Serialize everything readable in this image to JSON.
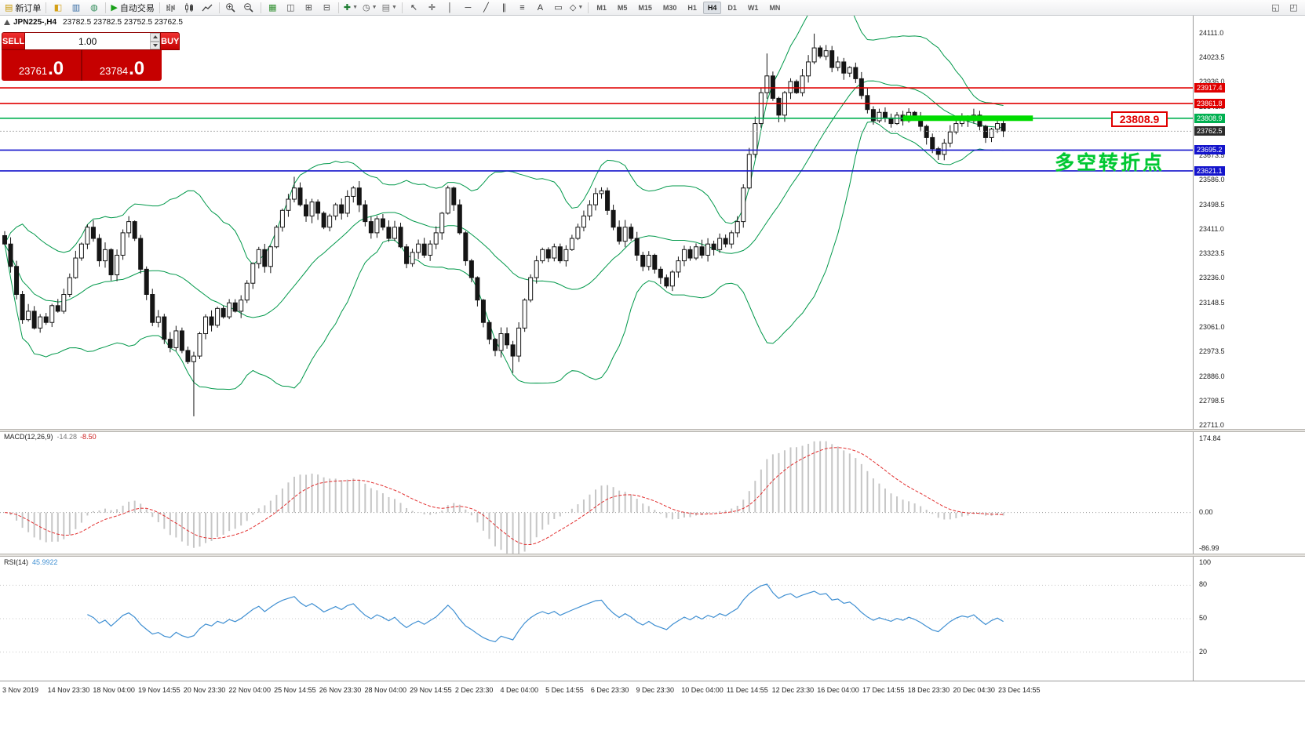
{
  "toolbar": {
    "new_order_label": "新订单",
    "auto_trading_label": "自动交易",
    "timeframes": [
      "M1",
      "M5",
      "M15",
      "M30",
      "H1",
      "H4",
      "D1",
      "W1",
      "MN"
    ],
    "active_timeframe": "H4",
    "icon_buttons": [
      {
        "name": "market-watch-button",
        "icon": "market-watch-icon"
      },
      {
        "name": "data-window-button",
        "icon": "data-window-icon"
      },
      {
        "name": "navigator-button",
        "icon": "navigator-icon"
      }
    ],
    "chart_type_buttons": [
      {
        "name": "bar-chart-button",
        "icon": "bars-icon"
      },
      {
        "name": "candlestick-chart-button",
        "icon": "candles-icon"
      },
      {
        "name": "line-chart-button",
        "icon": "line-chart-icon"
      }
    ],
    "zoom_buttons": [
      {
        "name": "zoom-in-button",
        "icon": "zoom-in-icon"
      },
      {
        "name": "zoom-out-button",
        "icon": "zoom-out-icon"
      }
    ],
    "window_buttons": [
      {
        "name": "new-chart-button",
        "icon": "new-chart-icon"
      },
      {
        "name": "profiles-button",
        "icon": "profiles-icon"
      },
      {
        "name": "tile-windows-button",
        "icon": "tile-windows-icon"
      },
      {
        "name": "cascade-windows-button",
        "icon": "cascade-windows-icon"
      }
    ],
    "dropdown_buttons": [
      {
        "name": "indicators-dropdown",
        "icon": "indicators-icon"
      },
      {
        "name": "periods-dropdown",
        "icon": "periods-icon"
      },
      {
        "name": "templates-dropdown",
        "icon": "templates-icon"
      }
    ],
    "drawing_buttons": [
      {
        "name": "cursor-button",
        "icon": "cursor-icon"
      },
      {
        "name": "crosshair-button",
        "icon": "crosshair-icon"
      },
      {
        "name": "vertical-line-button",
        "icon": "vertical-line-icon"
      },
      {
        "name": "horizontal-line-button",
        "icon": "horizontal-line-icon"
      },
      {
        "name": "trendline-button",
        "icon": "trendline-icon"
      },
      {
        "name": "channel-button",
        "icon": "channel-icon"
      },
      {
        "name": "fibonacci-button",
        "icon": "fibonacci-icon"
      },
      {
        "name": "text-button",
        "icon": "text-icon"
      },
      {
        "name": "arrow-label-button",
        "icon": "label-icon"
      },
      {
        "name": "shapes-dropdown",
        "icon": "shapes-icon"
      }
    ],
    "corner_buttons": [
      {
        "name": "window-arrange-button",
        "icon": "window-icon"
      },
      {
        "name": "window-list-button",
        "icon": "window-list-icon"
      }
    ]
  },
  "chart": {
    "title": "JPN225-,H4",
    "ohlc": "23782.5 23782.5 23752.5 23762.5",
    "trade_panel": {
      "sell_label": "SELL",
      "buy_label": "BUY",
      "volume": "1.00",
      "sell_price": "23761",
      "sell_price_frac": ".0",
      "buy_price": "23784",
      "buy_price_frac": ".0"
    },
    "y_axis_ticks": [
      24111.0,
      24023.5,
      23936.0,
      23848.5,
      23761.0,
      23673.5,
      23586.0,
      23498.5,
      23411.0,
      23323.5,
      23236.0,
      23148.5,
      23061.0,
      22973.5,
      22886.0,
      22798.5,
      22711.0
    ],
    "levels": [
      {
        "name": "resistance-line-1",
        "price": 23917.4,
        "color": "#e00000"
      },
      {
        "name": "resistance-line-2",
        "price": 23861.8,
        "color": "#e00000"
      },
      {
        "name": "pivot-line",
        "price": 23808.9,
        "color": "#00b050"
      },
      {
        "name": "support-line-1",
        "price": 23695.2,
        "color": "#1414cc"
      },
      {
        "name": "support-line-2",
        "price": 23621.1,
        "color": "#1414cc"
      }
    ],
    "current_price": 23762.5,
    "highlight": {
      "price": 23808.9,
      "from_index": 152,
      "to_index": 174,
      "color": "#00dc00"
    },
    "callout": {
      "text": "23808.9",
      "color": "#e00000"
    },
    "annotation": {
      "text": "多空转折点",
      "color": "#00c832"
    }
  },
  "macd": {
    "label": "MACD(12,26,9)",
    "value_main": "-14.28",
    "value_signal": "-8.50",
    "axis_ticks": [
      174.84,
      0.0,
      -86.99
    ]
  },
  "rsi": {
    "label": "RSI(14)",
    "value": "45.9922",
    "axis_ticks": [
      100,
      80,
      50,
      20
    ],
    "levels": [
      80,
      50,
      20
    ]
  },
  "time_axis": {
    "labels": [
      "3 Nov 2019",
      "14 Nov 23:30",
      "18 Nov 04:00",
      "19 Nov 14:55",
      "20 Nov 23:30",
      "22 Nov 04:00",
      "25 Nov 14:55",
      "26 Nov 23:30",
      "28 Nov 04:00",
      "29 Nov 14:55",
      "2 Dec 23:30",
      "4 Dec 04:00",
      "5 Dec 14:55",
      "6 Dec 23:30",
      "9 Dec 23:30",
      "10 Dec 04:00",
      "11 Dec 14:55",
      "12 Dec 23:30",
      "16 Dec 04:00",
      "17 Dec 14:55",
      "18 Dec 23:30",
      "20 Dec 04:30",
      "23 Dec 14:55"
    ]
  },
  "chart_data": [
    {
      "type": "candlestick",
      "symbol": "JPN225-",
      "timeframe": "H4",
      "ohlc_current": {
        "open": 23782.5,
        "high": 23782.5,
        "low": 23752.5,
        "close": 23762.5
      },
      "ylim": [
        22700,
        24175
      ],
      "bollinger": {
        "period": 20,
        "deviation": 2
      },
      "closes": [
        23360,
        23280,
        23180,
        23090,
        23120,
        23060,
        23100,
        23080,
        23140,
        23120,
        23180,
        23240,
        23310,
        23360,
        23420,
        23380,
        23300,
        23340,
        23250,
        23320,
        23400,
        23440,
        23380,
        23270,
        23180,
        23080,
        23100,
        23020,
        22990,
        23050,
        22980,
        22940,
        22960,
        23040,
        23100,
        23070,
        23130,
        23100,
        23150,
        23120,
        23160,
        23220,
        23290,
        23340,
        23280,
        23350,
        23420,
        23480,
        23520,
        23560,
        23500,
        23460,
        23510,
        23470,
        23420,
        23460,
        23500,
        23470,
        23530,
        23560,
        23500,
        23440,
        23400,
        23450,
        23420,
        23380,
        23420,
        23350,
        23290,
        23330,
        23360,
        23320,
        23360,
        23400,
        23470,
        23560,
        23500,
        23400,
        23300,
        23240,
        23160,
        23080,
        23020,
        22980,
        23040,
        23000,
        22960,
        23060,
        23160,
        23240,
        23300,
        23340,
        23310,
        23350,
        23300,
        23340,
        23380,
        23420,
        23460,
        23500,
        23540,
        23550,
        23480,
        23420,
        23370,
        23420,
        23380,
        23320,
        23280,
        23320,
        23270,
        23240,
        23210,
        23260,
        23300,
        23340,
        23310,
        23350,
        23320,
        23360,
        23340,
        23380,
        23360,
        23400,
        23440,
        23560,
        23680,
        23790,
        23900,
        23960,
        23880,
        23820,
        23900,
        23940,
        23900,
        23960,
        24010,
        24060,
        24030,
        24050,
        23990,
        24010,
        23970,
        23990,
        23950,
        23890,
        23840,
        23800,
        23830,
        23810,
        23790,
        23820,
        23800,
        23830,
        23810,
        23780,
        23740,
        23700,
        23680,
        23720,
        23760,
        23790,
        23810,
        23800,
        23820,
        23780,
        23740,
        23770,
        23790,
        23762.5
      ],
      "spike_lows": {
        "32": 22745,
        "86": 22900,
        "158": 23660
      },
      "spike_highs": {
        "49": 23600,
        "129": 24040,
        "137": 24111
      }
    },
    {
      "type": "macd",
      "params": {
        "fast": 12,
        "slow": 26,
        "signal": 9
      },
      "current_macd": -14.28,
      "current_signal": -8.5,
      "ylim": [
        -98,
        194
      ],
      "computed_from_closes": true
    },
    {
      "type": "line",
      "indicator": "RSI",
      "period": 14,
      "current": 45.9922,
      "ylim": [
        0,
        100
      ],
      "levels": [
        80,
        50,
        20
      ],
      "computed_from_closes": true
    }
  ]
}
